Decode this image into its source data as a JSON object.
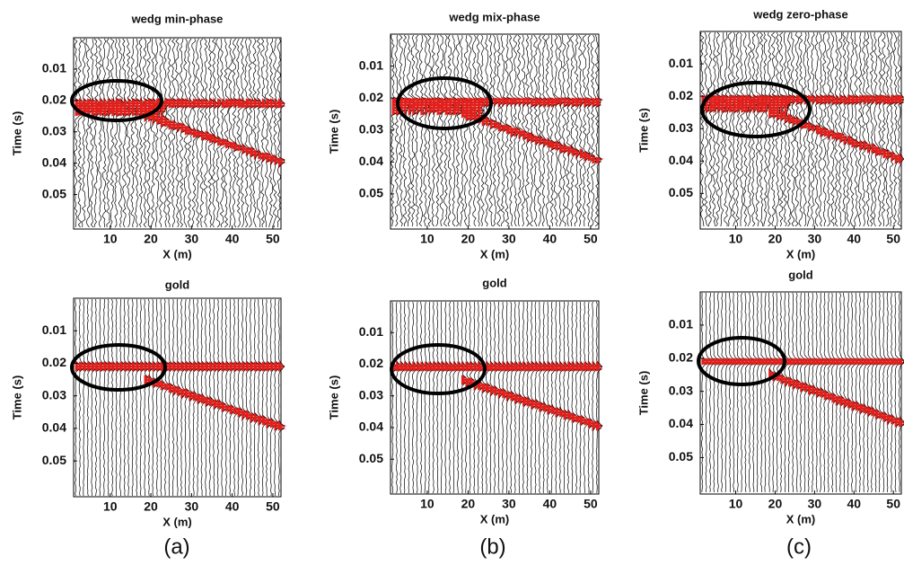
{
  "chart_data": [
    {
      "type": "wiggle",
      "title": "wedg min-phase",
      "x_label": "X (m)",
      "y_label": "Time (s)",
      "xlim": [
        1,
        52
      ],
      "ylim": [
        0,
        0.061
      ],
      "y_inverted": true,
      "xticks": [
        10,
        20,
        30,
        40,
        50
      ],
      "yticks": [
        0.01,
        0.02,
        0.03,
        0.04,
        0.05
      ]
    },
    {
      "type": "wiggle",
      "title": "wedg mix-phase",
      "x_label": "X (m)",
      "y_label": "Time (s)",
      "xlim": [
        1,
        52
      ],
      "ylim": [
        0,
        0.061
      ],
      "y_inverted": true,
      "xticks": [
        10,
        20,
        30,
        40,
        50
      ],
      "yticks": [
        0.01,
        0.02,
        0.03,
        0.04,
        0.05
      ]
    },
    {
      "type": "wiggle",
      "title": "wedg zero-phase",
      "x_label": "X (m)",
      "y_label": "Time (s)",
      "xlim": [
        1,
        52
      ],
      "ylim": [
        0,
        0.061
      ],
      "y_inverted": true,
      "xticks": [
        10,
        20,
        30,
        40,
        50
      ],
      "yticks": [
        0.01,
        0.02,
        0.03,
        0.04,
        0.05
      ]
    },
    {
      "type": "wiggle",
      "title": "gold",
      "x_label": "X (m)",
      "y_label": "Time (s)",
      "xlim": [
        1,
        52
      ],
      "ylim": [
        0,
        0.061
      ],
      "y_inverted": true,
      "xticks": [
        10,
        20,
        30,
        40,
        50
      ],
      "yticks": [
        0.01,
        0.02,
        0.03,
        0.04,
        0.05
      ]
    },
    {
      "type": "wiggle",
      "title": "gold",
      "x_label": "X (m)",
      "y_label": "Time (s)",
      "xlim": [
        1,
        52
      ],
      "ylim": [
        0,
        0.061
      ],
      "y_inverted": true,
      "xticks": [
        10,
        20,
        30,
        40,
        50
      ],
      "yticks": [
        0.01,
        0.02,
        0.03,
        0.04,
        0.05
      ]
    },
    {
      "type": "wiggle",
      "title": "gold",
      "x_label": "X (m)",
      "y_label": "Time (s)",
      "xlim": [
        1,
        52
      ],
      "ylim": [
        0,
        0.061
      ],
      "y_inverted": true,
      "xticks": [
        10,
        20,
        30,
        40,
        50
      ],
      "yticks": [
        0.01,
        0.02,
        0.03,
        0.04,
        0.05
      ]
    }
  ],
  "captions": [
    "(a)",
    "(b)",
    "(c)"
  ]
}
